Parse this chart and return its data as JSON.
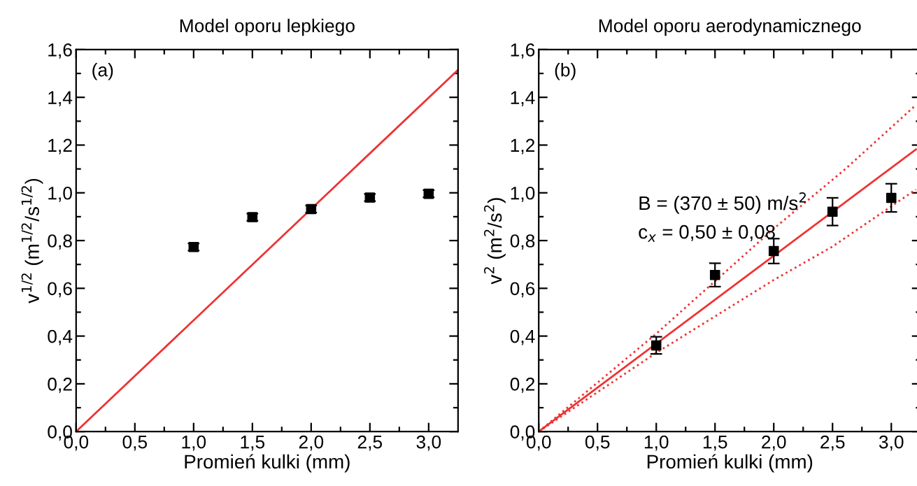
{
  "chart_data": [
    {
      "type": "scatter",
      "title": "Model oporu lepkiego",
      "xlabel": "Promień kulki (mm)",
      "ylabel": "v$^{1/2}$ (m$^{1/2}$/s$^{1/2}$)",
      "x": [
        1.0,
        1.5,
        2.0,
        2.5,
        3.0
      ],
      "series": [
        {
          "color": "#000000",
          "marker": "square",
          "values": [
            0.773,
            0.898,
            0.932,
            0.98,
            0.996
          ],
          "errors": [
            0.015,
            0.015,
            0.015,
            0.015,
            0.015
          ]
        },
        {
          "type": "line",
          "color": "#ee3333",
          "line_style": "solid",
          "marker": "none",
          "x": [
            0,
            3.25
          ],
          "values": [
            0,
            1.515
          ]
        }
      ],
      "annotations": [
        "(a)"
      ],
      "xlim": [
        0,
        3.25
      ],
      "ylim": [
        0,
        1.6
      ],
      "xticks": [
        {
          "value": 0,
          "label": "0,0"
        },
        {
          "value": 0.25,
          "label": null
        },
        {
          "value": 0.5,
          "label": "0,5"
        },
        {
          "value": 0.75,
          "label": null
        },
        {
          "value": 1.0,
          "label": "1,0"
        },
        {
          "value": 1.25,
          "label": null
        },
        {
          "value": 1.5,
          "label": "1,5"
        },
        {
          "value": 1.75,
          "label": null
        },
        {
          "value": 2.0,
          "label": "2,0"
        },
        {
          "value": 2.25,
          "label": null
        },
        {
          "value": 2.5,
          "label": "2,5"
        },
        {
          "value": 2.75,
          "label": null
        },
        {
          "value": 3.0,
          "label": "3,0"
        }
      ],
      "yticks": [
        {
          "value": 0,
          "label": "0,0"
        },
        {
          "value": 0.1,
          "label": null
        },
        {
          "value": 0.2,
          "label": "0,2"
        },
        {
          "value": 0.3,
          "label": null
        },
        {
          "value": 0.4,
          "label": "0,4"
        },
        {
          "value": 0.5,
          "label": null
        },
        {
          "value": 0.6,
          "label": "0,6"
        },
        {
          "value": 0.7,
          "label": null
        },
        {
          "value": 0.8,
          "label": "0,8"
        },
        {
          "value": 0.9,
          "label": null
        },
        {
          "value": 1.0,
          "label": "1,0"
        },
        {
          "value": 1.1,
          "label": null
        },
        {
          "value": 1.2,
          "label": "1,2"
        },
        {
          "value": 1.3,
          "label": null
        },
        {
          "value": 1.4,
          "label": "1,4"
        },
        {
          "value": 1.5,
          "label": null
        },
        {
          "value": 1.6,
          "label": "1,6"
        }
      ],
      "grid": false,
      "legend": false
    },
    {
      "type": "scatter",
      "title": "Model oporu aerodynamicznego",
      "xlabel": "Promień kulki (mm)",
      "ylabel": "v$^{2}$ (m$^{2}$/s$^{2}$)",
      "x": [
        1.0,
        1.5,
        2.0,
        2.5,
        3.0
      ],
      "series": [
        {
          "type": "line",
          "color": "#ee3333",
          "line_style": "dotted",
          "marker": "none",
          "x": [
            0,
            1.0,
            2.0,
            2.61,
            3.21
          ],
          "values": [
            0,
            0.41,
            0.85,
            1.1,
            1.368
          ]
        },
        {
          "type": "line",
          "color": "#ee3333",
          "line_style": "dotted",
          "marker": "none",
          "x": [
            0,
            1.0,
            2.0,
            2.5,
            3.21
          ],
          "values": [
            0,
            0.33,
            0.635,
            0.775,
            1.014
          ]
        },
        {
          "type": "line",
          "color": "#ee3333",
          "line_style": "solid",
          "marker": "none",
          "x": [
            0,
            3.21
          ],
          "values": [
            0,
            1.182
          ]
        },
        {
          "color": "#000000",
          "marker": "square",
          "values": [
            0.361,
            0.656,
            0.756,
            0.921,
            0.979
          ],
          "errors": [
            0.036,
            0.049,
            0.052,
            0.058,
            0.059
          ]
        }
      ],
      "annotations": [
        "(b)",
        "B = (370 ± 50) m/s$^{2}$",
        "c$_{x}$ = 0,50 ± 0,08"
      ],
      "xlim": [
        0,
        3.25
      ],
      "ylim": [
        0,
        1.6
      ],
      "xticks": [
        {
          "value": 0,
          "label": "0,0"
        },
        {
          "value": 0.25,
          "label": null
        },
        {
          "value": 0.5,
          "label": "0,5"
        },
        {
          "value": 0.75,
          "label": null
        },
        {
          "value": 1.0,
          "label": "1,0"
        },
        {
          "value": 1.25,
          "label": null
        },
        {
          "value": 1.5,
          "label": "1,5"
        },
        {
          "value": 1.75,
          "label": null
        },
        {
          "value": 2.0,
          "label": "2,0"
        },
        {
          "value": 2.25,
          "label": null
        },
        {
          "value": 2.5,
          "label": "2,5"
        },
        {
          "value": 2.75,
          "label": null
        },
        {
          "value": 3.0,
          "label": "3,0"
        }
      ],
      "yticks": [
        {
          "value": 0,
          "label": "0,0"
        },
        {
          "value": 0.1,
          "label": null
        },
        {
          "value": 0.2,
          "label": "0,2"
        },
        {
          "value": 0.3,
          "label": null
        },
        {
          "value": 0.4,
          "label": "0,4"
        },
        {
          "value": 0.5,
          "label": null
        },
        {
          "value": 0.6,
          "label": "0,6"
        },
        {
          "value": 0.7,
          "label": null
        },
        {
          "value": 0.8,
          "label": "0,8"
        },
        {
          "value": 0.9,
          "label": null
        },
        {
          "value": 1.0,
          "label": "1,0"
        },
        {
          "value": 1.1,
          "label": null
        },
        {
          "value": 1.2,
          "label": "1,2"
        },
        {
          "value": 1.3,
          "label": null
        },
        {
          "value": 1.4,
          "label": "1,4"
        },
        {
          "value": 1.5,
          "label": null
        },
        {
          "value": 1.6,
          "label": "1,6"
        }
      ],
      "grid": false,
      "legend": false
    }
  ]
}
